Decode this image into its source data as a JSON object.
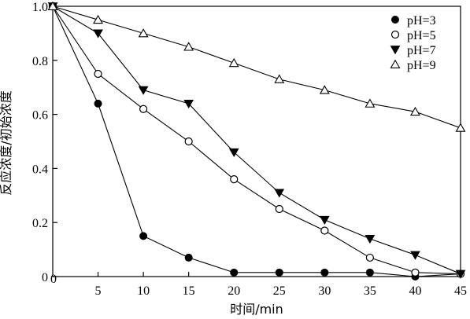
{
  "chart_data": {
    "type": "line",
    "title": "",
    "xlabel": "时间/min",
    "ylabel": "反应浓度/初始浓度",
    "xlim": [
      0,
      45
    ],
    "ylim": [
      0,
      1.0
    ],
    "x_ticks": [
      5,
      10,
      15,
      20,
      25,
      30,
      35,
      40,
      45
    ],
    "x_origin_label": "0",
    "y_ticks": [
      0,
      0.2,
      0.4,
      0.6,
      0.8,
      1.0
    ],
    "y_tick_labels": [
      "0",
      "0.2",
      "0.4",
      "0.6",
      "0.8",
      "1.0"
    ],
    "grid": false,
    "legend_position": "top-right",
    "x": [
      0,
      5,
      10,
      15,
      20,
      25,
      30,
      35,
      40,
      45
    ],
    "series": [
      {
        "name": "pH=3",
        "marker": "filled-circle",
        "values": [
          1.0,
          0.64,
          0.15,
          0.07,
          0.015,
          0.015,
          0.015,
          0.015,
          0.0,
          0.01
        ]
      },
      {
        "name": "pH=5",
        "marker": "open-circle",
        "values": [
          1.0,
          0.75,
          0.62,
          0.5,
          0.36,
          0.25,
          0.17,
          0.07,
          0.015,
          0.01
        ]
      },
      {
        "name": "pH=7",
        "marker": "filled-triangle-down",
        "values": [
          1.0,
          0.9,
          0.69,
          0.64,
          0.46,
          0.31,
          0.21,
          0.14,
          0.08,
          0.01
        ]
      },
      {
        "name": "pH=9",
        "marker": "open-triangle-up",
        "values": [
          1.0,
          0.95,
          0.9,
          0.85,
          0.79,
          0.73,
          0.69,
          0.64,
          0.61,
          0.55
        ]
      }
    ]
  }
}
